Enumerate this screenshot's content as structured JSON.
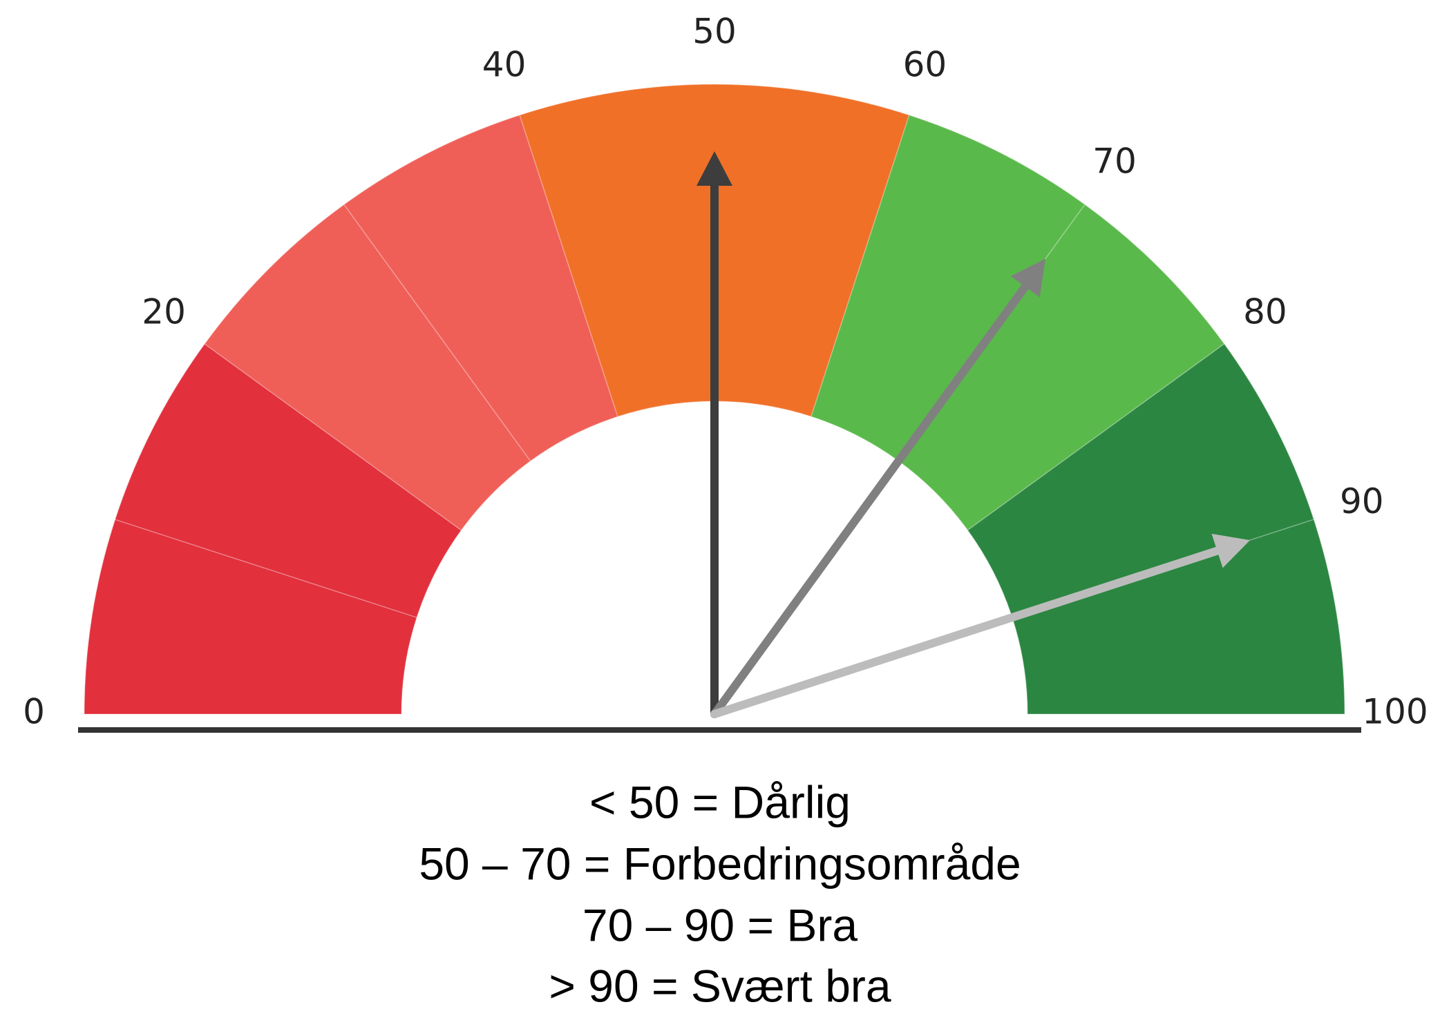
{
  "chart_data": {
    "type": "gauge",
    "range": [
      0,
      100
    ],
    "ticks": [
      0,
      20,
      40,
      50,
      60,
      70,
      80,
      90,
      100
    ],
    "bands": [
      {
        "from": 0,
        "to": 10,
        "color": "#e2303d"
      },
      {
        "from": 10,
        "to": 20,
        "color": "#e2303d"
      },
      {
        "from": 20,
        "to": 30,
        "color": "#ef5f58"
      },
      {
        "from": 30,
        "to": 40,
        "color": "#ef5f58"
      },
      {
        "from": 40,
        "to": 60,
        "color": "#f07028"
      },
      {
        "from": 60,
        "to": 70,
        "color": "#5ab94b"
      },
      {
        "from": 70,
        "to": 80,
        "color": "#5ab94b"
      },
      {
        "from": 80,
        "to": 90,
        "color": "#2b8641"
      },
      {
        "from": 90,
        "to": 100,
        "color": "#2b8641"
      }
    ],
    "needles": [
      {
        "value": 50,
        "color": "#3d3d3d"
      },
      {
        "value": 70,
        "color": "#808080"
      },
      {
        "value": 90,
        "color": "#bcbcbc"
      }
    ],
    "annotations": [
      "< 50 = Dårlig",
      "50 – 70 = Forbedringsområde",
      "70 – 90 = Bra",
      "> 90 = Svært bra"
    ]
  }
}
